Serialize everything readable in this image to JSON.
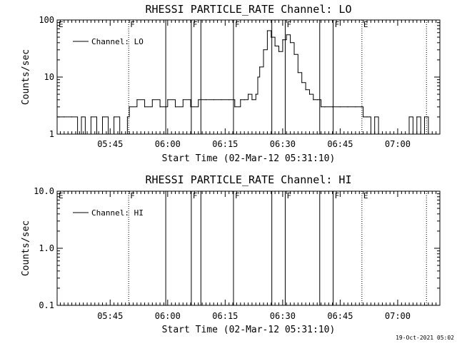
{
  "chart_data": [
    {
      "type": "line",
      "title": "RHESSI PARTICLE_RATE Channel: LO",
      "xlabel": "Start Time (02-Mar-12 05:31:10)",
      "ylabel": "Counts/sec",
      "yscale": "log",
      "ylim": [
        1,
        100
      ],
      "xlim": [
        "05:31:10",
        "07:11:00"
      ],
      "x_ticks": [
        "05:45",
        "06:00",
        "06:15",
        "06:30",
        "06:45",
        "07:00"
      ],
      "y_ticks": [
        "1",
        "10",
        "100"
      ],
      "legend": {
        "entries": [
          "Channel: LO"
        ],
        "placement": "top-left"
      },
      "markers": [
        {
          "label": "E",
          "time": "05:31:10",
          "style": "none"
        },
        {
          "label": "F",
          "time": "05:49:50",
          "style": "dotted"
        },
        {
          "label": "",
          "time": "05:59:30",
          "style": "solid"
        },
        {
          "label": "F",
          "time": "06:06:10",
          "style": "solid"
        },
        {
          "label": "",
          "time": "06:08:40",
          "style": "solid"
        },
        {
          "label": "F",
          "time": "06:17:10",
          "style": "solid"
        },
        {
          "label": "",
          "time": "06:27:10",
          "style": "solid"
        },
        {
          "label": "F",
          "time": "06:30:40",
          "style": "solid"
        },
        {
          "label": "",
          "time": "06:39:40",
          "style": "solid"
        },
        {
          "label": "F",
          "time": "06:43:10",
          "style": "solid"
        },
        {
          "label": "E",
          "time": "06:50:40",
          "style": "dotted"
        },
        {
          "label": "",
          "time": "07:07:30",
          "style": "dotted"
        }
      ],
      "series": [
        {
          "times": [
            "05:31:10",
            "05:33:00",
            "05:35:00",
            "05:36:30",
            "05:37:30",
            "05:38:30",
            "05:40:00",
            "05:41:30",
            "05:43:00",
            "05:44:30",
            "05:46:00",
            "05:47:30",
            "05:49:30",
            "05:50:00",
            "05:52:00",
            "05:54:00",
            "05:56:00",
            "05:58:00",
            "06:00:00",
            "06:02:00",
            "06:04:00",
            "06:06:00",
            "06:08:00",
            "06:10:00",
            "06:12:00",
            "06:14:00",
            "06:16:00",
            "06:17:30",
            "06:19:00",
            "06:20:00",
            "06:21:00",
            "06:22:00",
            "06:23:00",
            "06:23:30",
            "06:24:00",
            "06:25:00",
            "06:26:00",
            "06:27:00",
            "06:28:00",
            "06:29:00",
            "06:30:00",
            "06:31:00",
            "06:32:00",
            "06:33:00",
            "06:34:00",
            "06:35:00",
            "06:36:00",
            "06:37:00",
            "06:38:00",
            "06:39:00",
            "06:40:00",
            "06:41:00",
            "06:43:00",
            "06:45:00",
            "06:47:00",
            "06:49:00",
            "06:50:30",
            "06:51:00",
            "06:52:00",
            "06:53:00",
            "06:54:00",
            "06:55:00",
            "06:56:00",
            "06:58:00",
            "07:00:00",
            "07:02:00",
            "07:03:00",
            "07:04:00",
            "07:05:00",
            "07:06:00",
            "07:07:00",
            "07:08:00",
            "07:10:00"
          ],
          "values": [
            2,
            2,
            2,
            1,
            2,
            1,
            2,
            1,
            2,
            1,
            2,
            1,
            2,
            3,
            4,
            3,
            4,
            3,
            4,
            3,
            4,
            3,
            4,
            4,
            4,
            4,
            4,
            3,
            4,
            4,
            5,
            4,
            5,
            10,
            15,
            30,
            65,
            50,
            35,
            28,
            45,
            55,
            40,
            25,
            12,
            8,
            6,
            5,
            4,
            4,
            3,
            3,
            3,
            3,
            3,
            3,
            3,
            2,
            2,
            1,
            2,
            1,
            1,
            1,
            1,
            1,
            2,
            1,
            2,
            1,
            2,
            1,
            1
          ]
        }
      ]
    },
    {
      "type": "line",
      "title": "RHESSI PARTICLE_RATE Channel: HI",
      "xlabel": "Start Time (02-Mar-12 05:31:10)",
      "ylabel": "Counts/sec",
      "yscale": "log",
      "ylim": [
        0.1,
        10
      ],
      "xlim": [
        "05:31:10",
        "07:11:00"
      ],
      "x_ticks": [
        "05:45",
        "06:00",
        "06:15",
        "06:30",
        "06:45",
        "07:00"
      ],
      "y_ticks": [
        "0.1",
        "1.0",
        "10.0"
      ],
      "legend": {
        "entries": [
          "Channel: HI"
        ],
        "placement": "top-left"
      },
      "markers": [
        {
          "label": "E",
          "time": "05:31:10",
          "style": "none"
        },
        {
          "label": "F",
          "time": "05:49:50",
          "style": "dotted"
        },
        {
          "label": "",
          "time": "05:59:30",
          "style": "solid"
        },
        {
          "label": "F",
          "time": "06:06:10",
          "style": "solid"
        },
        {
          "label": "",
          "time": "06:08:40",
          "style": "solid"
        },
        {
          "label": "F",
          "time": "06:17:10",
          "style": "solid"
        },
        {
          "label": "",
          "time": "06:27:10",
          "style": "solid"
        },
        {
          "label": "F",
          "time": "06:30:40",
          "style": "solid"
        },
        {
          "label": "",
          "time": "06:39:40",
          "style": "solid"
        },
        {
          "label": "F",
          "time": "06:43:10",
          "style": "solid"
        },
        {
          "label": "E",
          "time": "06:50:40",
          "style": "dotted"
        },
        {
          "label": "",
          "time": "07:07:30",
          "style": "dotted"
        }
      ],
      "series": [
        {
          "times": [],
          "values": []
        }
      ]
    }
  ],
  "footer": {
    "timestamp": "19-Oct-2021 05:02"
  }
}
